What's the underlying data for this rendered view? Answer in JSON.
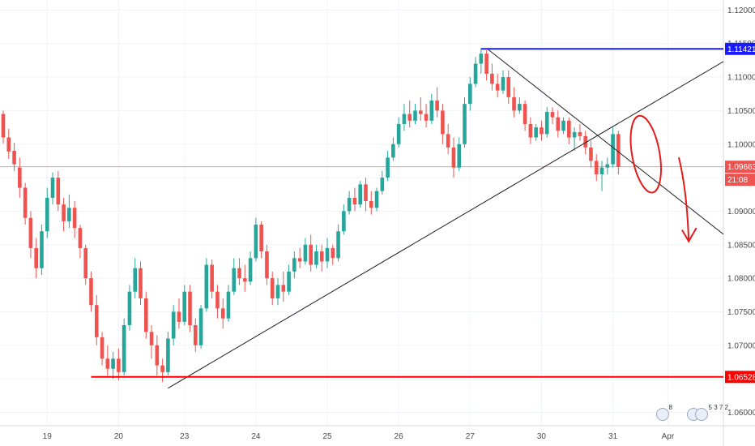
{
  "chart_data": {
    "type": "candlestick",
    "symbol_scale": "EUR/USD-style price",
    "ylim": [
      1.058,
      1.1215
    ],
    "y_ticks": [
      "1.12000",
      "1.11500",
      "1.11000",
      "1.10500",
      "1.10000",
      "1.09500",
      "1.09000",
      "1.08500",
      "1.08000",
      "1.07500",
      "1.07000",
      "1.06500",
      "1.06000"
    ],
    "x_ticks": [
      "19",
      "20",
      "23",
      "24",
      "25",
      "26",
      "27",
      "30",
      "31",
      "Apr"
    ],
    "colors": {
      "up": "#26a69a",
      "down": "#ef5350",
      "resistance": "#1a1aff",
      "support": "#ff0000",
      "trendline": "#1f1f1f",
      "annotation": "#e31b1b"
    },
    "price_tags": [
      {
        "label": "1.11421",
        "value": 1.11421,
        "color": "#1a1aff"
      },
      {
        "label": "1.09663",
        "value": 1.09663,
        "color": "#ef5350"
      },
      {
        "label": "21:08",
        "value": 1.09451,
        "color": "#ef5350"
      },
      {
        "label": "1.06528",
        "value": 1.06528,
        "color": "#ff0000"
      }
    ],
    "horizontal_lines": [
      {
        "name": "resistance",
        "value": 1.11421,
        "from_index": 87
      },
      {
        "name": "support",
        "value": 1.06528,
        "from_index": 16
      },
      {
        "name": "last-price",
        "value": 1.09663,
        "from_index": 0
      }
    ],
    "trendlines": [
      {
        "from": [
          30,
          1.0636
        ],
        "to": [
          118,
          1.106
        ]
      },
      {
        "from": [
          88,
          1.1143
        ],
        "to": [
          118,
          1.095
        ]
      }
    ],
    "candles": [
      [
        1.1045,
        1.105,
        1.1001,
        1.101
      ],
      [
        1.101,
        1.1023,
        1.0978,
        1.0989
      ],
      [
        1.099,
        1.1002,
        1.096,
        1.097
      ],
      [
        1.0965,
        1.098,
        1.092,
        1.0935
      ],
      [
        1.0935,
        1.0942,
        1.088,
        1.089
      ],
      [
        1.089,
        1.09,
        1.083,
        1.0845
      ],
      [
        1.0845,
        1.086,
        1.08,
        1.0815
      ],
      [
        1.0815,
        1.088,
        1.0805,
        1.087
      ],
      [
        1.087,
        1.0935,
        1.086,
        1.092
      ],
      [
        1.092,
        1.0958,
        1.091,
        1.095
      ],
      [
        1.095,
        1.096,
        1.09,
        1.091
      ],
      [
        1.091,
        1.092,
        1.087,
        1.0885
      ],
      [
        1.0885,
        1.0925,
        1.0875,
        1.0905
      ],
      [
        1.0905,
        1.0915,
        1.086,
        1.0875
      ],
      [
        1.0875,
        1.088,
        1.083,
        1.0845
      ],
      [
        1.0845,
        1.085,
        1.079,
        1.08
      ],
      [
        1.08,
        1.081,
        1.075,
        1.076
      ],
      [
        1.076,
        1.0775,
        1.07,
        1.0712
      ],
      [
        1.0712,
        1.072,
        1.067,
        1.068
      ],
      [
        1.068,
        1.07,
        1.0655,
        1.0665
      ],
      [
        1.0665,
        1.069,
        1.065,
        1.068
      ],
      [
        1.068,
        1.0695,
        1.0648,
        1.066
      ],
      [
        1.066,
        1.074,
        1.0655,
        1.073
      ],
      [
        1.073,
        1.079,
        1.0722,
        1.078
      ],
      [
        1.078,
        1.083,
        1.077,
        1.0815
      ],
      [
        1.0815,
        1.0825,
        1.076,
        1.077
      ],
      [
        1.077,
        1.078,
        1.071,
        1.072
      ],
      [
        1.072,
        1.073,
        1.068,
        1.07
      ],
      [
        1.07,
        1.0715,
        1.0655,
        1.067
      ],
      [
        1.067,
        1.068,
        1.0645,
        1.066
      ],
      [
        1.066,
        1.072,
        1.0655,
        1.071
      ],
      [
        1.071,
        1.076,
        1.07,
        1.075
      ],
      [
        1.075,
        1.077,
        1.0725,
        1.0735
      ],
      [
        1.0735,
        1.079,
        1.073,
        1.078
      ],
      [
        1.078,
        1.079,
        1.072,
        1.073
      ],
      [
        1.073,
        1.074,
        1.069,
        1.07
      ],
      [
        1.07,
        1.076,
        1.0695,
        1.0755
      ],
      [
        1.0755,
        1.083,
        1.075,
        1.082
      ],
      [
        1.082,
        1.0828,
        1.077,
        1.078
      ],
      [
        1.078,
        1.079,
        1.074,
        1.0755
      ],
      [
        1.0755,
        1.077,
        1.0725,
        1.074
      ],
      [
        1.074,
        1.079,
        1.0735,
        1.078
      ],
      [
        1.078,
        1.083,
        1.0775,
        1.0815
      ],
      [
        1.0815,
        1.083,
        1.079,
        1.08
      ],
      [
        1.08,
        1.082,
        1.078,
        1.0795
      ],
      [
        1.0795,
        1.084,
        1.079,
        1.083
      ],
      [
        1.083,
        1.089,
        1.0825,
        1.088
      ],
      [
        1.088,
        1.0885,
        1.083,
        1.084
      ],
      [
        1.084,
        1.085,
        1.079,
        1.08
      ],
      [
        1.08,
        1.081,
        1.076,
        1.077
      ],
      [
        1.077,
        1.08,
        1.076,
        1.079
      ],
      [
        1.079,
        1.081,
        1.0765,
        1.078
      ],
      [
        1.078,
        1.082,
        1.0775,
        1.081
      ],
      [
        1.081,
        1.084,
        1.08,
        1.083
      ],
      [
        1.083,
        1.0845,
        1.0815,
        1.0825
      ],
      [
        1.0825,
        1.086,
        1.082,
        1.085
      ],
      [
        1.085,
        1.0865,
        1.081,
        1.082
      ],
      [
        1.082,
        1.085,
        1.0815,
        1.084
      ],
      [
        1.084,
        1.085,
        1.081,
        1.0825
      ],
      [
        1.0825,
        1.086,
        1.0815,
        1.0845
      ],
      [
        1.0845,
        1.085,
        1.082,
        1.083
      ],
      [
        1.083,
        1.088,
        1.0825,
        1.087
      ],
      [
        1.087,
        1.091,
        1.0865,
        1.09
      ],
      [
        1.09,
        1.093,
        1.0895,
        1.092
      ],
      [
        1.092,
        1.0935,
        1.09,
        1.091
      ],
      [
        1.091,
        1.0945,
        1.0905,
        1.094
      ],
      [
        1.094,
        1.095,
        1.09,
        1.0915
      ],
      [
        1.0915,
        1.093,
        1.0895,
        1.0905
      ],
      [
        1.0905,
        1.0935,
        1.09,
        1.093
      ],
      [
        1.093,
        1.096,
        1.0925,
        1.095
      ],
      [
        1.095,
        1.099,
        1.0945,
        1.098
      ],
      [
        1.098,
        1.101,
        1.0975,
        1.1
      ],
      [
        1.1,
        1.104,
        1.0995,
        1.103
      ],
      [
        1.103,
        1.106,
        1.102,
        1.1045
      ],
      [
        1.1045,
        1.1065,
        1.1025,
        1.1035
      ],
      [
        1.1035,
        1.106,
        1.103,
        1.105
      ],
      [
        1.105,
        1.107,
        1.1035,
        1.1045
      ],
      [
        1.1045,
        1.106,
        1.1025,
        1.1035
      ],
      [
        1.1035,
        1.1075,
        1.103,
        1.1065
      ],
      [
        1.1065,
        1.1085,
        1.104,
        1.105
      ],
      [
        1.105,
        1.106,
        1.1,
        1.1015
      ],
      [
        1.1015,
        1.103,
        1.0985,
        1.0995
      ],
      [
        1.0995,
        1.101,
        1.095,
        1.0965
      ],
      [
        1.0965,
        1.101,
        1.096,
        1.1
      ],
      [
        1.1,
        1.107,
        1.0995,
        1.106
      ],
      [
        1.106,
        1.11,
        1.105,
        1.109
      ],
      [
        1.109,
        1.113,
        1.1085,
        1.112
      ],
      [
        1.112,
        1.1143,
        1.1105,
        1.1135
      ],
      [
        1.1135,
        1.114,
        1.1095,
        1.1105
      ],
      [
        1.1105,
        1.112,
        1.108,
        1.109
      ],
      [
        1.109,
        1.1105,
        1.107,
        1.108
      ],
      [
        1.108,
        1.111,
        1.1075,
        1.11
      ],
      [
        1.11,
        1.111,
        1.106,
        1.107
      ],
      [
        1.107,
        1.1085,
        1.104,
        1.105
      ],
      [
        1.105,
        1.107,
        1.1045,
        1.106
      ],
      [
        1.106,
        1.1065,
        1.102,
        1.103
      ],
      [
        1.103,
        1.104,
        1.1,
        1.101
      ],
      [
        1.101,
        1.103,
        1.1005,
        1.1025
      ],
      [
        1.1025,
        1.1035,
        1.1005,
        1.1015
      ],
      [
        1.1015,
        1.1055,
        1.101,
        1.1048
      ],
      [
        1.1048,
        1.1055,
        1.103,
        1.104
      ],
      [
        1.104,
        1.105,
        1.101,
        1.102
      ],
      [
        1.102,
        1.104,
        1.1015,
        1.1035
      ],
      [
        1.1035,
        1.104,
        1.1,
        1.101
      ],
      [
        1.101,
        1.1025,
        1.099,
        1.1018
      ],
      [
        1.1018,
        1.103,
        1.1005,
        1.1012
      ],
      [
        1.1012,
        1.102,
        1.0985,
        1.0995
      ],
      [
        1.0995,
        1.1005,
        1.0965,
        1.0975
      ],
      [
        1.0975,
        1.0985,
        1.0945,
        1.0955
      ],
      [
        1.0955,
        1.0975,
        1.093,
        1.0965
      ],
      [
        1.0965,
        1.098,
        1.0955,
        1.097
      ],
      [
        1.097,
        1.1025,
        1.0965,
        1.1015
      ],
      [
        1.1015,
        1.102,
        1.0955,
        1.0966
      ]
    ]
  },
  "badges": [
    {
      "count": "8"
    },
    {
      "count": "5 3 7 2"
    }
  ]
}
